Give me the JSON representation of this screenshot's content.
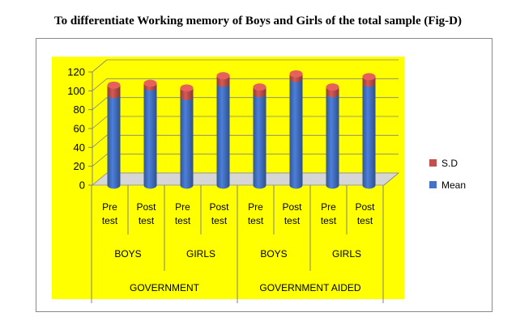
{
  "title": "To differentiate Working memory of Boys and Girls of the total sample (Fig-D)",
  "chart_data": {
    "type": "bar",
    "stacked": true,
    "categories": [
      "Pre test",
      "Post test",
      "Pre test",
      "Post test",
      "Pre test",
      "Post test",
      "Pre test",
      "Post test"
    ],
    "category_lines": [
      [
        "Pre",
        "test"
      ],
      [
        "Post",
        "test"
      ],
      [
        "Pre",
        "test"
      ],
      [
        "Post",
        "test"
      ],
      [
        "Pre",
        "test"
      ],
      [
        "Post",
        "test"
      ],
      [
        "Pre",
        "test"
      ],
      [
        "Post",
        "test"
      ]
    ],
    "groups": [
      "BOYS",
      "GIRLS",
      "BOYS",
      "GIRLS"
    ],
    "supergroups": [
      "GOVERNMENT",
      "GOVERNMENT AIDED"
    ],
    "series": [
      {
        "name": "Mean",
        "color": "#4472c4",
        "values": [
          96,
          104,
          94,
          108,
          97,
          113,
          97,
          108
        ]
      },
      {
        "name": "S.D",
        "color": "#c0504d",
        "values": [
          10,
          4,
          9,
          8,
          7,
          5,
          7,
          7
        ]
      }
    ],
    "y_ticks": [
      "0",
      "20",
      "40",
      "60",
      "80",
      "100",
      "120"
    ],
    "ylim": [
      0,
      120
    ],
    "grid": true,
    "legend_position": "right",
    "background_color": "#ffff00"
  }
}
